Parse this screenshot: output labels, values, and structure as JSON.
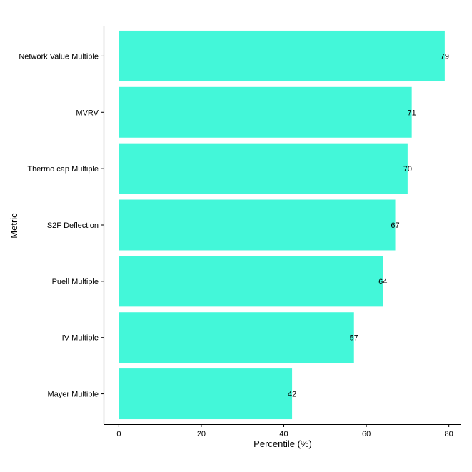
{
  "chart_data": {
    "type": "bar",
    "orientation": "horizontal",
    "categories": [
      "Network Value Multiple",
      "MVRV",
      "Thermo cap Multiple",
      "S2F Deflection",
      "Puell Multiple",
      "IV Multiple",
      "Mayer Multiple"
    ],
    "values": [
      79,
      71,
      70,
      67,
      64,
      57,
      42
    ],
    "xlabel": "Percentile (%)",
    "ylabel": "Metric",
    "xlim": [
      -3.7,
      83
    ],
    "xticks": [
      0,
      20,
      40,
      60,
      80
    ],
    "grid": false,
    "legend": "none",
    "bar_color": "#43f7d9"
  }
}
